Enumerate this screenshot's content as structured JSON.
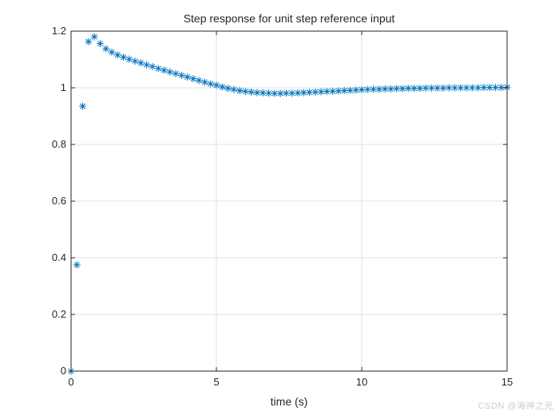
{
  "figure": {
    "title": "Step response for unit step reference input",
    "xlabel": "time (s)",
    "watermark": "CSDN @海神之光"
  },
  "colors": {
    "marker": "#0072BD",
    "axis": "#262626",
    "grid": "#e0e0e0",
    "background": "#ffffff",
    "watermark": "#cdcdcd"
  },
  "chart_data": {
    "type": "scatter",
    "marker": "asterisk",
    "marker_color": "#0072BD",
    "title": "Step response for unit step reference input",
    "xlabel": "time (s)",
    "ylabel": "",
    "xlim": [
      0,
      15
    ],
    "ylim": [
      0,
      1.2
    ],
    "grid": true,
    "legend": null,
    "x_tick_values": [
      0,
      5,
      10,
      15
    ],
    "x_tick_labels": [
      "0",
      "5",
      "10",
      "15"
    ],
    "y_tick_values": [
      0,
      0.2,
      0.4,
      0.6,
      0.8,
      1,
      1.2
    ],
    "y_tick_labels": [
      "0",
      "0.2",
      "0.4",
      "0.6",
      "0.8",
      "1",
      "1.2"
    ],
    "sample_time_s": 0.2,
    "x": [
      0,
      0.2,
      0.4,
      0.6,
      0.8,
      1,
      1.2,
      1.4,
      1.6,
      1.8,
      2,
      2.2,
      2.4,
      2.6,
      2.8,
      3,
      3.2,
      3.4,
      3.6,
      3.8,
      4,
      4.2,
      4.4,
      4.6,
      4.8,
      5,
      5.2,
      5.4,
      5.6,
      5.8,
      6,
      6.2,
      6.4,
      6.6,
      6.8,
      7,
      7.2,
      7.4,
      7.6,
      7.8,
      8,
      8.2,
      8.4,
      8.6,
      8.8,
      9,
      9.2,
      9.4,
      9.6,
      9.8,
      10,
      10.2,
      10.4,
      10.6,
      10.8,
      11,
      11.2,
      11.4,
      11.6,
      11.8,
      12,
      12.2,
      12.4,
      12.6,
      12.8,
      13,
      13.2,
      13.4,
      13.6,
      13.8,
      14,
      14.2,
      14.4,
      14.6,
      14.8,
      15
    ],
    "y": [
      0,
      0.375,
      0.935,
      1.163,
      1.18,
      1.156,
      1.138,
      1.126,
      1.116,
      1.108,
      1.101,
      1.094,
      1.088,
      1.081,
      1.075,
      1.068,
      1.062,
      1.056,
      1.05,
      1.044,
      1.038,
      1.032,
      1.026,
      1.02,
      1.014,
      1.009,
      1.003,
      0.998,
      0.994,
      0.99,
      0.987,
      0.985,
      0.983,
      0.982,
      0.981,
      0.98,
      0.98,
      0.981,
      0.981,
      0.982,
      0.983,
      0.984,
      0.985,
      0.986,
      0.987,
      0.988,
      0.989,
      0.99,
      0.991,
      0.992,
      0.993,
      0.994,
      0.995,
      0.995,
      0.996,
      0.996,
      0.997,
      0.997,
      0.998,
      0.998,
      0.998,
      0.999,
      0.999,
      0.999,
      0.999,
      1,
      1,
      1,
      1,
      1,
      1,
      1.001,
      1.001,
      1.001,
      1.001,
      1.002
    ]
  }
}
